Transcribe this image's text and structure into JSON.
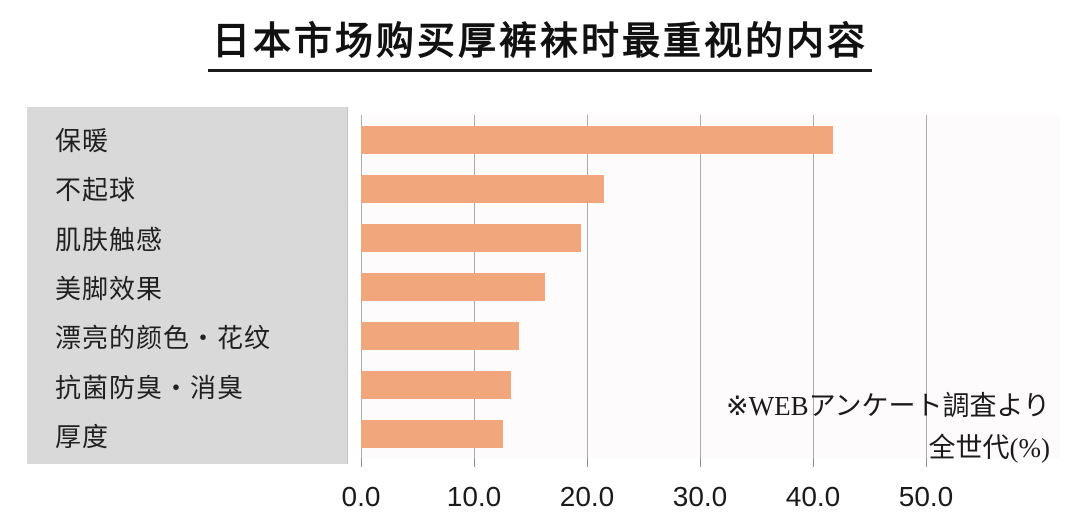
{
  "title": "日本市场购买厚裤袜时最重视的内容",
  "annotation": {
    "line1": "※WEBアンケート調査より",
    "line2": "全世代(%)"
  },
  "chart_data": {
    "type": "bar",
    "orientation": "horizontal",
    "title": "日本市场购买厚裤袜时最重视的内容",
    "categories": [
      "保暖",
      "不起球",
      "肌肤触感",
      "美脚效果",
      "漂亮的颜色・花纹",
      "抗菌防臭・消臭",
      "厚度"
    ],
    "values": [
      41.8,
      21.5,
      19.5,
      16.3,
      14.0,
      13.3,
      12.6
    ],
    "x_ticks": [
      "0.0",
      "10.0",
      "20.0",
      "30.0",
      "40.0",
      "50.0"
    ],
    "x_tick_values": [
      0,
      10,
      20,
      30,
      40,
      50
    ],
    "xlim": [
      0,
      61.5
    ],
    "unit": "%",
    "source_note": "※WEBアンケート調査より 全世代(%)",
    "grid": true,
    "legend": false,
    "bar_color": "#F1A67C",
    "label_panel_color": "#D9D9D9",
    "gridline_color": "#AEAAAE"
  }
}
